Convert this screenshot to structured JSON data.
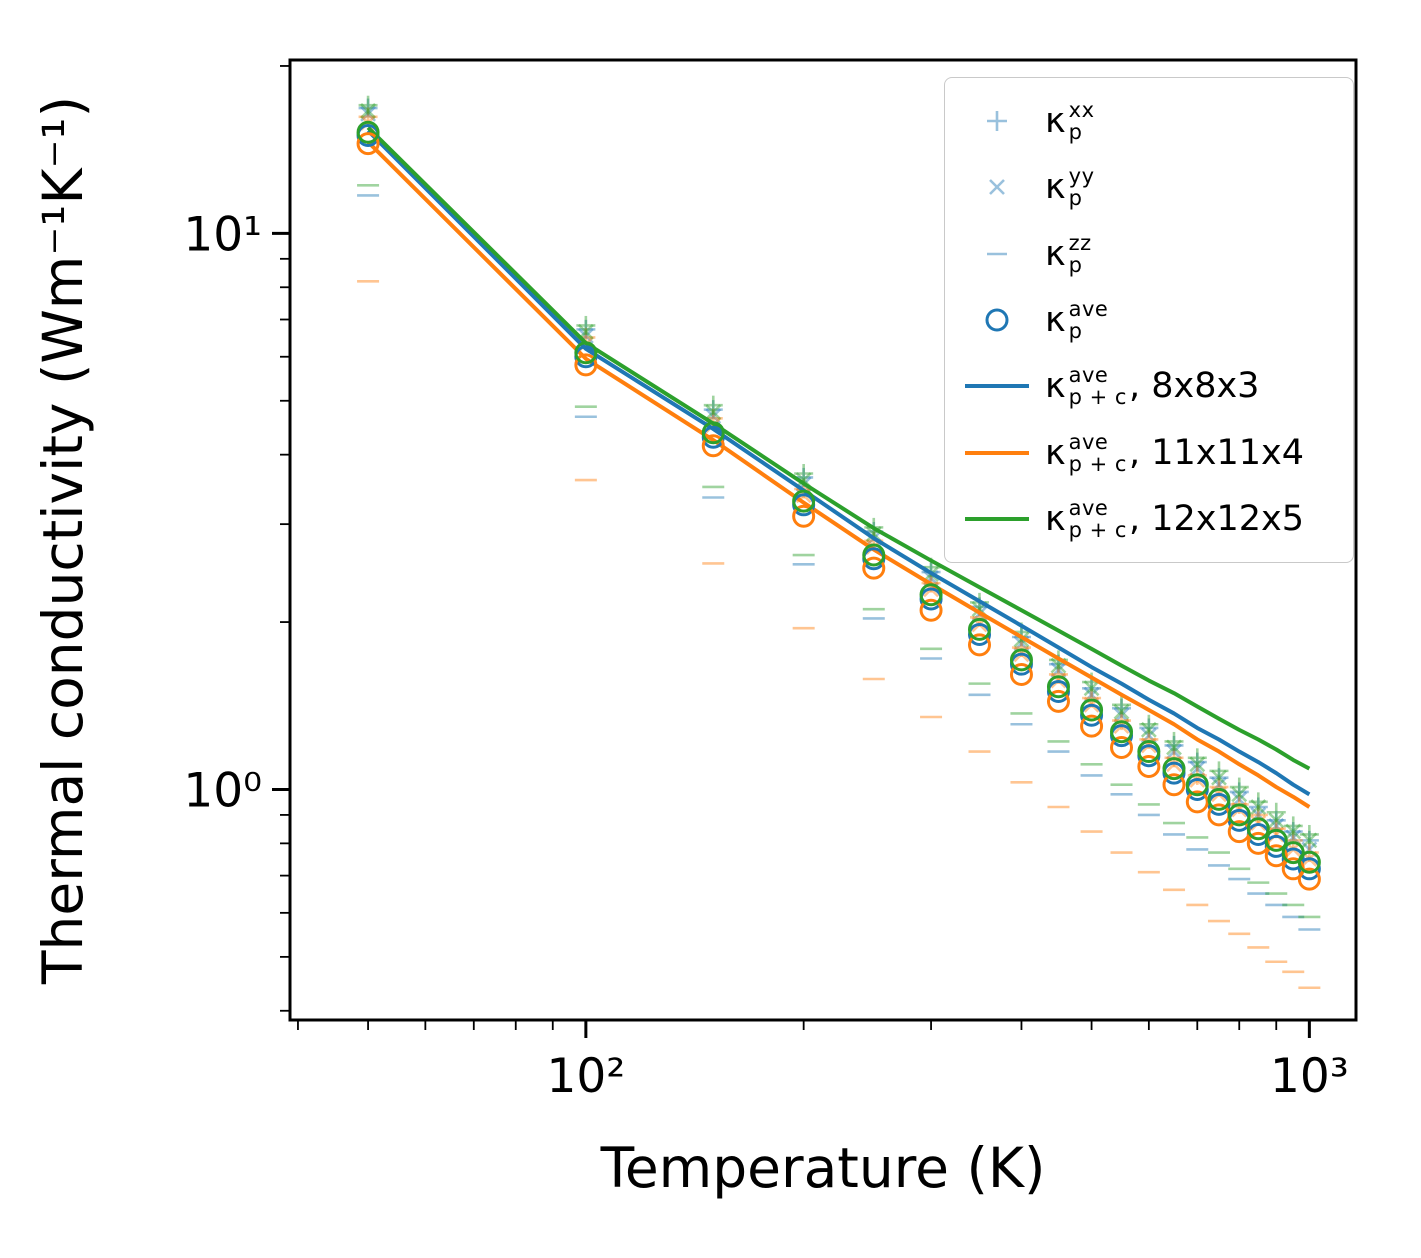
{
  "figure": {
    "xlabel": "Temperature (K)",
    "ylabel": "Thermal conductivity (Wm⁻¹K⁻¹)",
    "background": "#ffffff"
  },
  "colors": {
    "blue": "#1f77b4",
    "orange": "#ff7f0e",
    "green": "#2ca02c"
  },
  "chart_data": {
    "type": "line",
    "title": "",
    "xlabel": "Temperature (K)",
    "ylabel": "Thermal conductivity (Wm⁻¹K⁻¹)",
    "x_scale": "log",
    "y_scale": "log",
    "grid": false,
    "legend_position": "upper right",
    "xlim": [
      39,
      1160
    ],
    "ylim": [
      0.385,
      20.5
    ],
    "xticks": [
      {
        "value": 100,
        "label": "10²"
      },
      {
        "value": 1000,
        "label": "10³"
      }
    ],
    "yticks": [
      {
        "value": 1,
        "label": "10⁰"
      },
      {
        "value": 10,
        "label": "10¹"
      }
    ],
    "x": [
      50,
      100,
      150,
      200,
      250,
      300,
      350,
      400,
      450,
      500,
      550,
      600,
      650,
      700,
      750,
      800,
      850,
      900,
      950,
      1000
    ],
    "series": [
      {
        "name": "kappa_p^xx 8x8x3",
        "style": "scatter",
        "marker": "plus",
        "color": "#1f77b4",
        "alpha": 0.45,
        "values": [
          16.8,
          6.72,
          4.82,
          3.64,
          2.91,
          2.46,
          2.13,
          1.88,
          1.68,
          1.52,
          1.4,
          1.29,
          1.2,
          1.12,
          1.05,
          0.99,
          0.93,
          0.88,
          0.84,
          0.81
        ]
      },
      {
        "name": "kappa_p^yy 8x8x3",
        "style": "scatter",
        "marker": "cross",
        "color": "#1f77b4",
        "alpha": 0.45,
        "values": [
          16.4,
          6.54,
          4.69,
          3.54,
          2.83,
          2.4,
          2.07,
          1.83,
          1.64,
          1.48,
          1.36,
          1.25,
          1.17,
          1.09,
          1.02,
          0.96,
          0.9,
          0.86,
          0.82,
          0.78
        ]
      },
      {
        "name": "kappa_p^zz 8x8x3",
        "style": "scatter",
        "marker": "dash",
        "color": "#1f77b4",
        "alpha": 0.45,
        "values": [
          11.7,
          4.68,
          3.35,
          2.54,
          2.03,
          1.72,
          1.48,
          1.31,
          1.17,
          1.06,
          0.98,
          0.9,
          0.83,
          0.78,
          0.73,
          0.69,
          0.65,
          0.62,
          0.59,
          0.56
        ]
      },
      {
        "name": "kappa_p^xx 11x11x4",
        "style": "scatter",
        "marker": "plus",
        "color": "#ff7f0e",
        "alpha": 0.45,
        "values": [
          16.2,
          6.5,
          4.65,
          3.47,
          2.8,
          2.35,
          2.04,
          1.8,
          1.61,
          1.46,
          1.33,
          1.23,
          1.14,
          1.06,
          1.01,
          0.94,
          0.9,
          0.85,
          0.81,
          0.77
        ]
      },
      {
        "name": "kappa_p^yy 11x11x4",
        "style": "scatter",
        "marker": "cross",
        "color": "#ff7f0e",
        "alpha": 0.45,
        "values": [
          15.8,
          6.32,
          4.52,
          3.38,
          2.73,
          2.29,
          1.98,
          1.75,
          1.57,
          1.42,
          1.3,
          1.2,
          1.11,
          1.04,
          0.98,
          0.92,
          0.87,
          0.83,
          0.78,
          0.75
        ]
      },
      {
        "name": "kappa_p^zz 11x11x4",
        "style": "scatter",
        "marker": "dash",
        "color": "#ff7f0e",
        "alpha": 0.45,
        "values": [
          8.2,
          3.6,
          2.55,
          1.95,
          1.58,
          1.35,
          1.17,
          1.03,
          0.93,
          0.84,
          0.77,
          0.71,
          0.66,
          0.62,
          0.58,
          0.55,
          0.52,
          0.49,
          0.47,
          0.44
        ]
      },
      {
        "name": "kappa_p^xx 12x12x5",
        "style": "scatter",
        "marker": "plus",
        "color": "#2ca02c",
        "alpha": 0.45,
        "values": [
          17.0,
          6.83,
          4.91,
          3.7,
          2.96,
          2.51,
          2.17,
          1.92,
          1.71,
          1.56,
          1.42,
          1.31,
          1.22,
          1.14,
          1.08,
          1.01,
          0.95,
          0.91,
          0.86,
          0.83
        ]
      },
      {
        "name": "kappa_p^yy 12x12x5",
        "style": "scatter",
        "marker": "cross",
        "color": "#2ca02c",
        "alpha": 0.45,
        "values": [
          16.6,
          6.65,
          4.77,
          3.6,
          2.88,
          2.44,
          2.11,
          1.86,
          1.67,
          1.52,
          1.38,
          1.28,
          1.19,
          1.11,
          1.05,
          0.98,
          0.93,
          0.88,
          0.84,
          0.81
        ]
      },
      {
        "name": "kappa_p^zz 12x12x5",
        "style": "scatter",
        "marker": "dash",
        "color": "#2ca02c",
        "alpha": 0.45,
        "values": [
          12.2,
          4.88,
          3.5,
          2.64,
          2.11,
          1.79,
          1.55,
          1.37,
          1.22,
          1.11,
          1.02,
          0.94,
          0.87,
          0.82,
          0.77,
          0.72,
          0.68,
          0.65,
          0.62,
          0.59
        ]
      },
      {
        "name": "kappa_p^ave 8x8x3",
        "style": "scatter",
        "marker": "circle",
        "color": "#1f77b4",
        "alpha": 1,
        "values": [
          15.0,
          6.0,
          4.3,
          3.25,
          2.6,
          2.2,
          1.9,
          1.68,
          1.5,
          1.36,
          1.25,
          1.15,
          1.07,
          1.0,
          0.94,
          0.88,
          0.83,
          0.79,
          0.75,
          0.72
        ]
      },
      {
        "name": "kappa_p^ave 11x11x4",
        "style": "scatter",
        "marker": "circle",
        "color": "#ff7f0e",
        "alpha": 1,
        "values": [
          14.5,
          5.8,
          4.15,
          3.1,
          2.5,
          2.1,
          1.82,
          1.61,
          1.44,
          1.3,
          1.19,
          1.1,
          1.02,
          0.95,
          0.9,
          0.84,
          0.8,
          0.76,
          0.72,
          0.69
        ]
      },
      {
        "name": "kappa_p^ave 12x12x5",
        "style": "scatter",
        "marker": "circle",
        "color": "#2ca02c",
        "alpha": 1,
        "values": [
          15.2,
          6.1,
          4.38,
          3.3,
          2.64,
          2.24,
          1.94,
          1.71,
          1.53,
          1.39,
          1.27,
          1.17,
          1.09,
          1.02,
          0.96,
          0.9,
          0.85,
          0.81,
          0.77,
          0.74
        ]
      },
      {
        "name": "kappa_p+c^ave 8x8x3",
        "style": "line",
        "color": "#1f77b4",
        "values": [
          15.3,
          6.2,
          4.45,
          3.45,
          2.83,
          2.45,
          2.18,
          1.97,
          1.8,
          1.66,
          1.55,
          1.45,
          1.37,
          1.29,
          1.23,
          1.17,
          1.12,
          1.07,
          1.02,
          0.98
        ]
      },
      {
        "name": "kappa_p+c^ave 11x11x4",
        "style": "line",
        "color": "#ff7f0e",
        "values": [
          14.6,
          5.95,
          4.25,
          3.28,
          2.7,
          2.34,
          2.08,
          1.88,
          1.72,
          1.59,
          1.48,
          1.39,
          1.31,
          1.23,
          1.17,
          1.11,
          1.06,
          1.01,
          0.97,
          0.93
        ]
      },
      {
        "name": "kappa_p+c^ave 12x12x5",
        "style": "line",
        "color": "#2ca02c",
        "values": [
          15.5,
          6.35,
          4.55,
          3.55,
          2.95,
          2.58,
          2.31,
          2.1,
          1.93,
          1.79,
          1.67,
          1.57,
          1.49,
          1.41,
          1.34,
          1.28,
          1.23,
          1.18,
          1.13,
          1.09
        ]
      }
    ]
  },
  "legend": {
    "entries": [
      {
        "marker": "plus",
        "color": "#1f77b4",
        "alpha": 0.45,
        "base": "κ",
        "sup": "xx",
        "sub": "p",
        "suffix": ""
      },
      {
        "marker": "cross",
        "color": "#1f77b4",
        "alpha": 0.45,
        "base": "κ",
        "sup": "yy",
        "sub": "p",
        "suffix": ""
      },
      {
        "marker": "dash",
        "color": "#1f77b4",
        "alpha": 0.45,
        "base": "κ",
        "sup": "zz",
        "sub": "p",
        "suffix": ""
      },
      {
        "marker": "circle",
        "color": "#1f77b4",
        "alpha": 1,
        "base": "κ",
        "sup": "ave",
        "sub": "p",
        "suffix": ""
      },
      {
        "marker": "line",
        "color": "#1f77b4",
        "alpha": 1,
        "base": "κ",
        "sup": "ave",
        "sub": "p + c",
        "suffix": ", 8x8x3"
      },
      {
        "marker": "line",
        "color": "#ff7f0e",
        "alpha": 1,
        "base": "κ",
        "sup": "ave",
        "sub": "p + c",
        "suffix": ", 11x11x4"
      },
      {
        "marker": "line",
        "color": "#2ca02c",
        "alpha": 1,
        "base": "κ",
        "sup": "ave",
        "sub": "p + c",
        "suffix": ", 12x12x5"
      }
    ]
  }
}
